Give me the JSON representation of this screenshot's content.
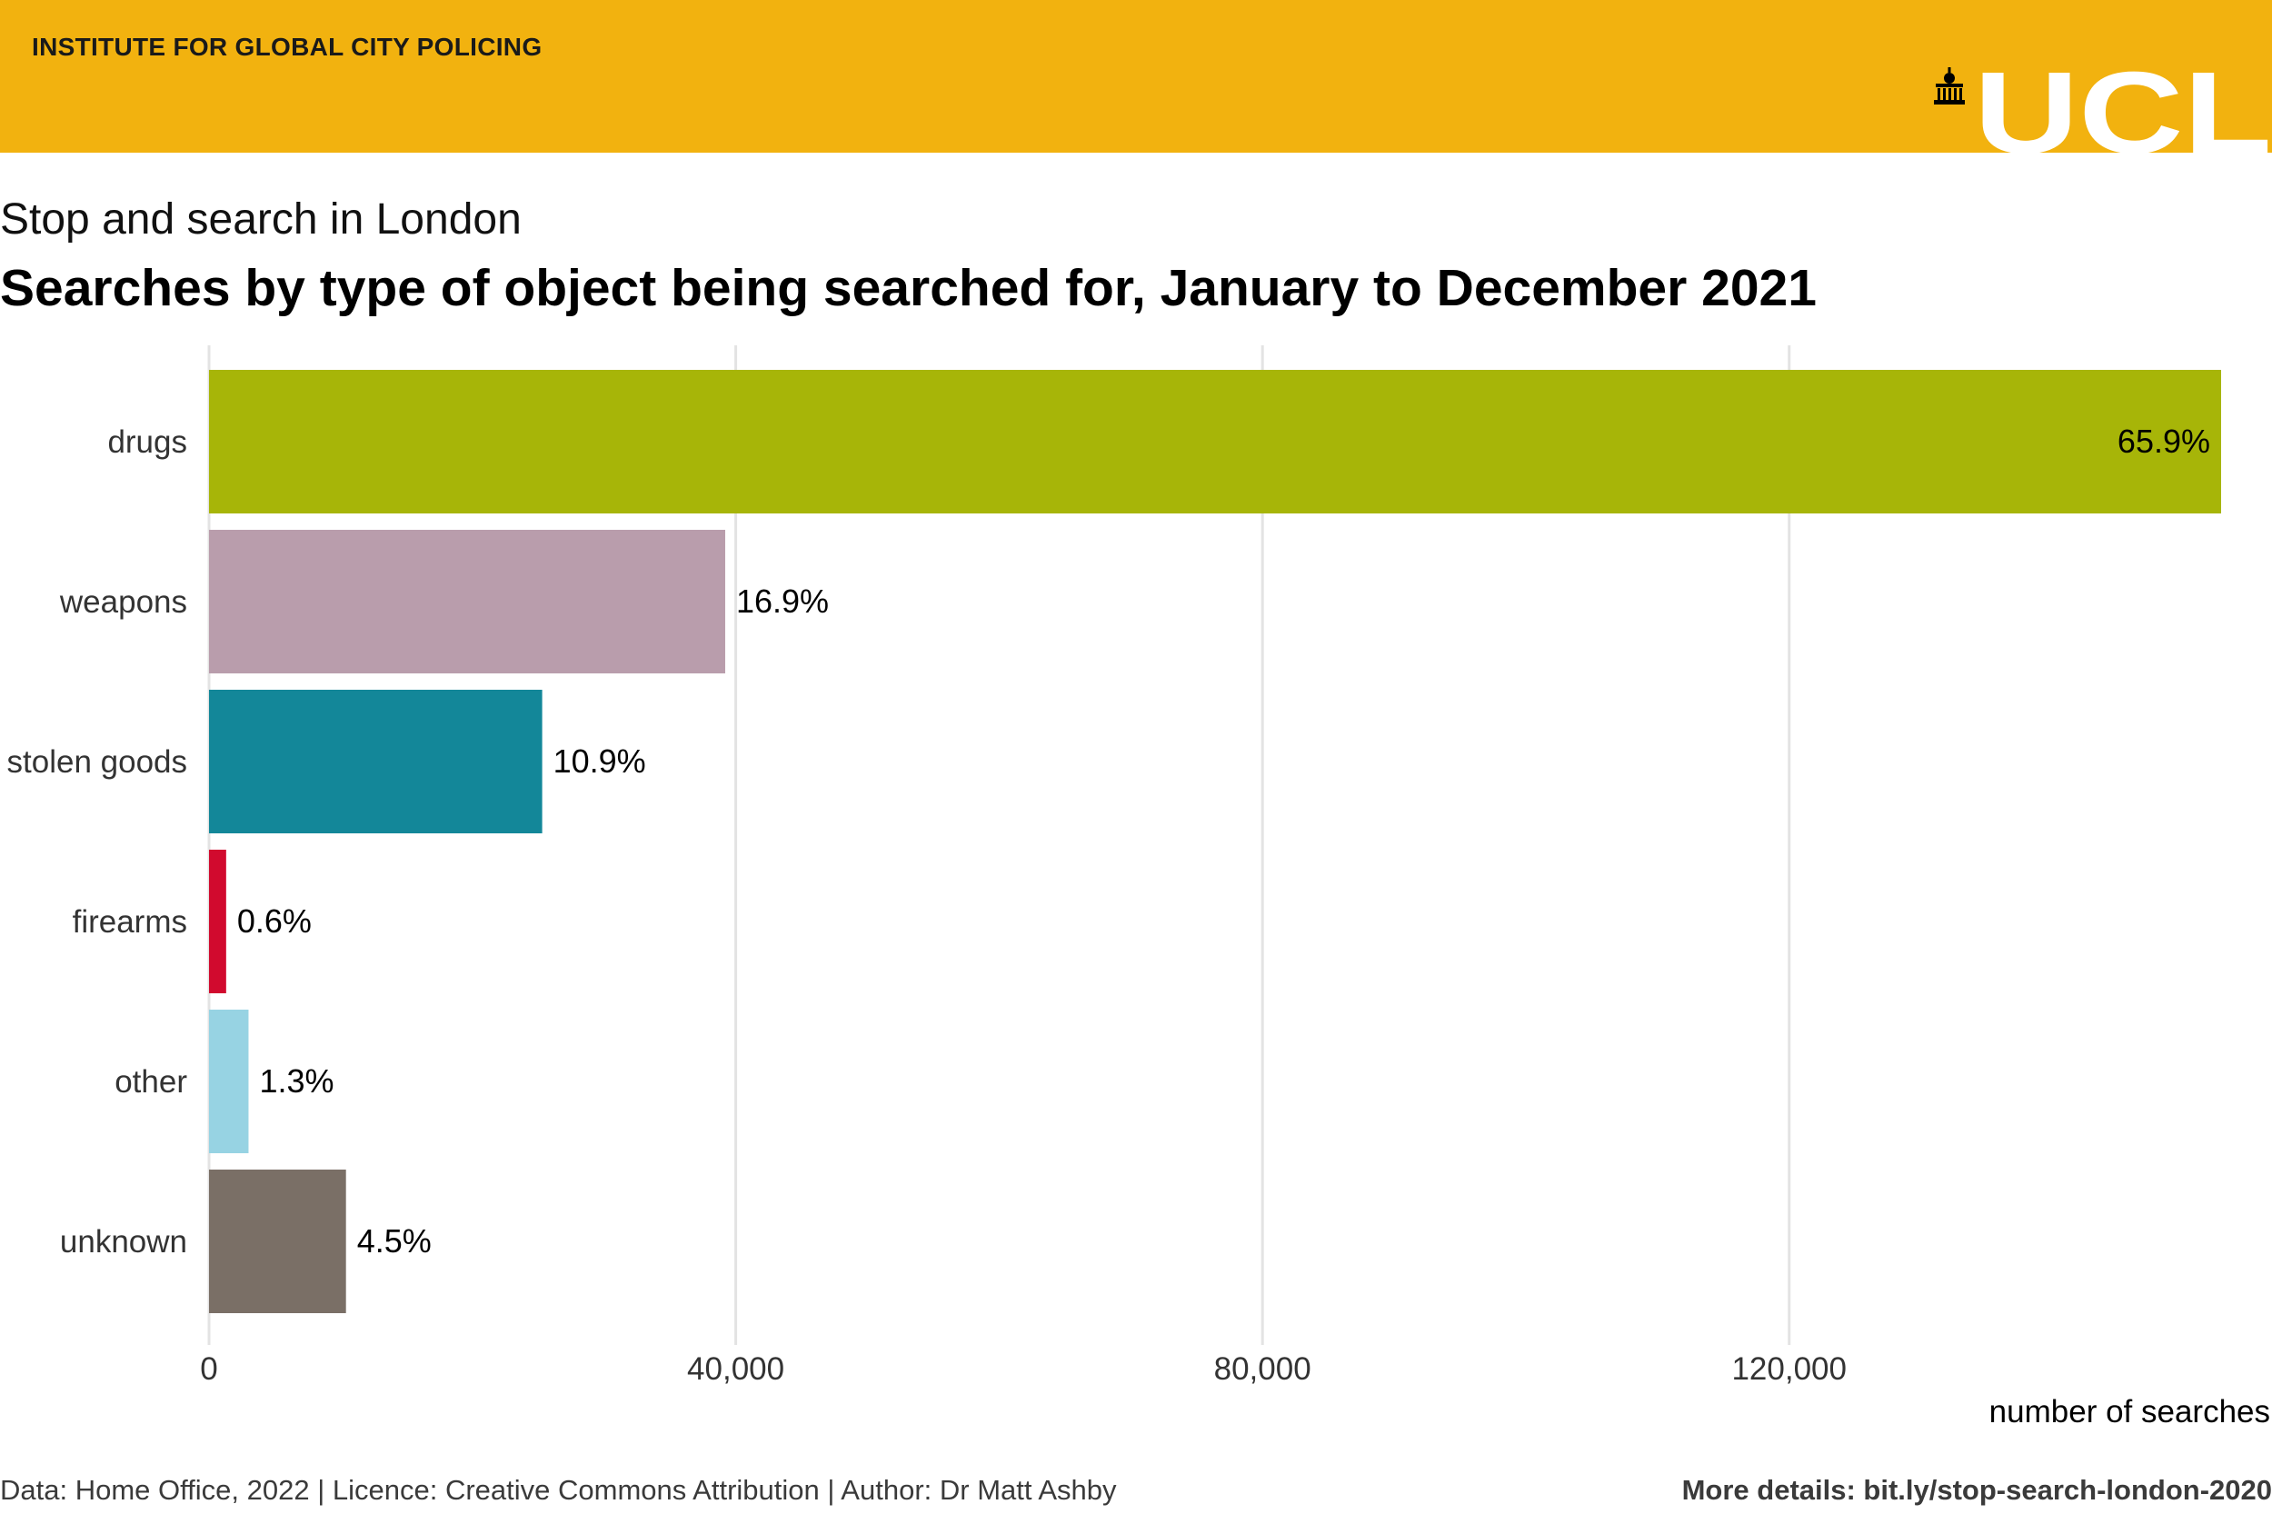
{
  "header": {
    "institute": "INSTITUTE FOR GLOBAL CITY POLICING",
    "logo_text": "UCL",
    "background_color": "#F2B20F"
  },
  "titles": {
    "subtitle": "Stop and search in London",
    "title": "Searches by type of object being searched for, January to December 2021"
  },
  "chart_data": {
    "type": "bar",
    "orientation": "horizontal",
    "categories": [
      "drugs",
      "weapons",
      "stolen goods",
      "firearms",
      "other",
      "unknown"
    ],
    "values": [
      152800,
      39200,
      25300,
      1300,
      3000,
      10400
    ],
    "labels": [
      "65.9%",
      "16.9%",
      "10.9%",
      "0.6%",
      "1.3%",
      "4.5%"
    ],
    "colors": [
      "#A7B508",
      "#B99DAC",
      "#138799",
      "#D10A2E",
      "#97D3E3",
      "#7A6F66"
    ],
    "xlabel": "number of searches",
    "xticks": [
      0,
      40000,
      80000,
      120000
    ],
    "xtick_labels": [
      "0",
      "40,000",
      "80,000",
      "120,000"
    ],
    "xlim": [
      0,
      152800
    ],
    "grid": "vertical major gridlines"
  },
  "footer": {
    "left": "Data: Home Office, 2022 | Licence: Creative Commons Attribution | Author: Dr Matt Ashby",
    "right": "More details: bit.ly/stop-search-london-2020"
  }
}
